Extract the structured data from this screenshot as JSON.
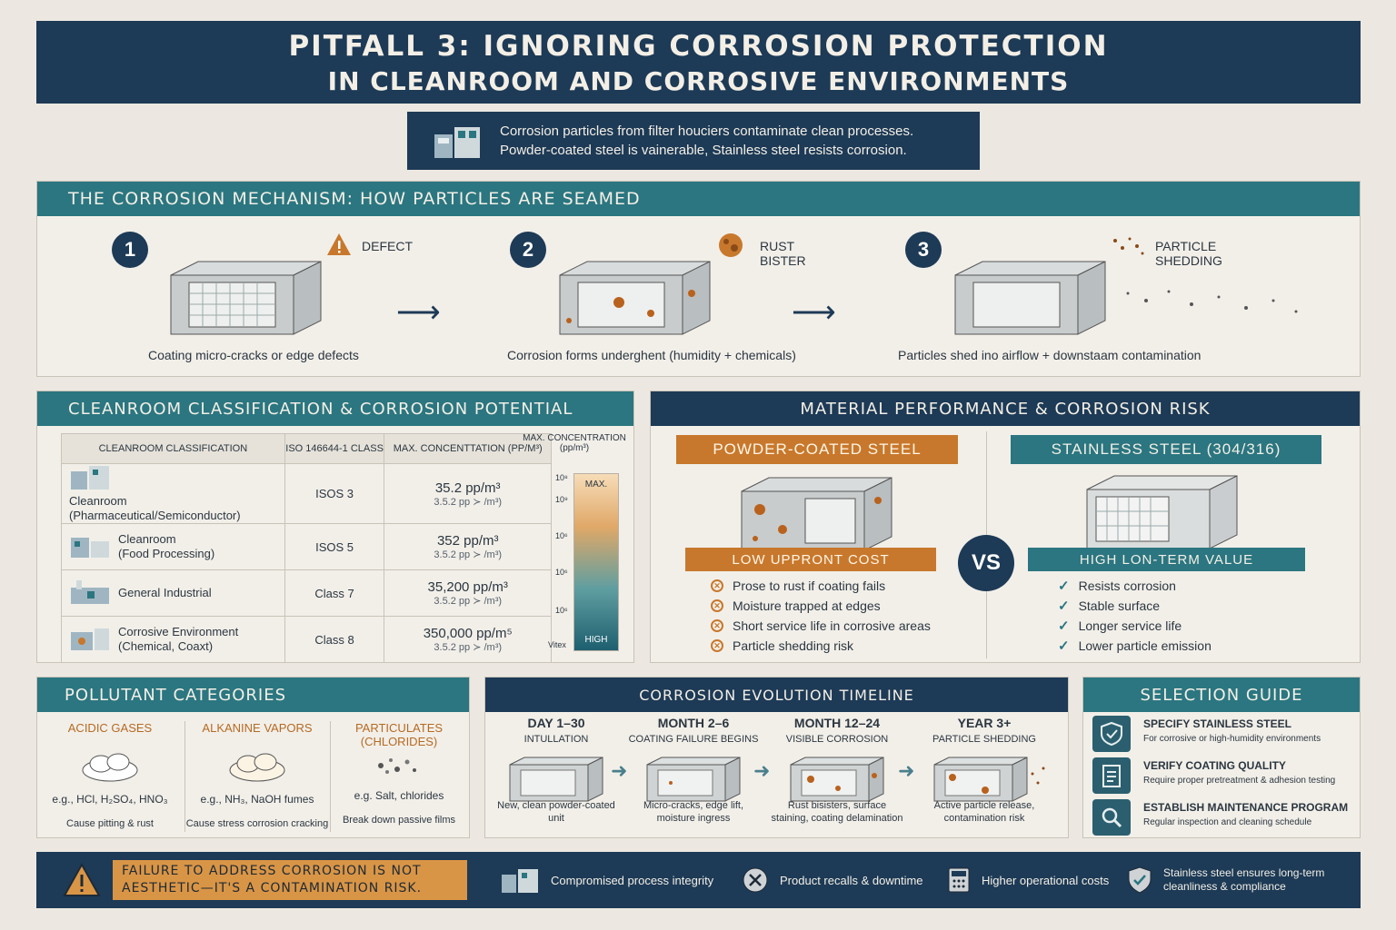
{
  "title": {
    "line1": "PITFALL 3: IGNORING CORROSION PROTECTION",
    "line2": "IN CLEANROOM AND CORROSIVE ENVIRONMENTS"
  },
  "subtitle": {
    "line1": "Corrosion particles from filter houciers contaminate clean processes.",
    "line2": "Powder-coated steel is vainerable, Stainless steel resists corrosion."
  },
  "mechanism": {
    "heading": "THE CORROSION MECHANISM: HOW PARTICLES ARE SEAMED",
    "steps": [
      {
        "num": "1",
        "label": "DEFECT",
        "caption": "Coating micro-cracks or edge defects"
      },
      {
        "num": "2",
        "label": "RUST BISTER",
        "caption": "Corrosion forms underghent (humidity + chemicals)"
      },
      {
        "num": "3",
        "label": "PARTICLE SHEDDING",
        "caption": "Particles shed ino airflow + downstaam contamination"
      }
    ]
  },
  "classification": {
    "heading": "CLEANROOM CLASSIFICATION & CORROSION POTENTIAL",
    "columns": [
      "CLEANROOM CLASSIFICATION",
      "ISO 146644-1 CLASS",
      "MAX. CONCENTTATION (pp/m³)"
    ],
    "rows": [
      {
        "name": "Cleanroom",
        "sub": "(Pharmaceutical/Semiconductor)",
        "cls": "ISOS 3",
        "c1": "35.2 pp/m³",
        "c2": "3.5.2 pp ≻ /m³)"
      },
      {
        "name": "Cleanroom",
        "sub": "(Food Processing)",
        "cls": "ISOS 5",
        "c1": "352 pp/m³",
        "c2": "3.5.2 pp ≻ /m³)"
      },
      {
        "name": "General Industrial",
        "sub": "",
        "cls": "Class 7",
        "c1": "35,200 pp/m³",
        "c2": "3.5.2 pp ≻ /m³)"
      },
      {
        "name": "Corrosive Environment",
        "sub": "(Chemical, Coaxt)",
        "cls": "Class 8",
        "c1": "350,000 pp/m⁵",
        "c2": "3.5.2 pp ≻ /m³)"
      }
    ],
    "scale": {
      "title": "MAX. CONCENTRATION",
      "unit": "(pp/m³)",
      "ticks": [
        "10⁸",
        "10⁹",
        "10⁶",
        "10⁶",
        "10⁶",
        "10⁴"
      ],
      "top_label": "MAX.",
      "bottom_label": "HIGH",
      "bottom_tick": "Vitex"
    }
  },
  "material": {
    "heading": "MATERIAL PERFORMANCE & CORROSION RISK",
    "left": {
      "name": "POWDER-COATED STEEL",
      "tag": "LOW UPPRONT COST",
      "bullets": [
        "Prose to rust if coating fails",
        "Moisture trapped at edges",
        "Short service life in corrosive areas",
        "Particle shedding risk"
      ]
    },
    "vs": "VS",
    "right": {
      "name": "STAINLESS STEEL (304/316)",
      "tag": "HIGH LON-TERM VALUE",
      "bullets": [
        "Resists corrosion",
        "Stable surface",
        "Longer service life",
        "Lower particle emission"
      ]
    }
  },
  "pollutants": {
    "heading": "POLLUTANT CATEGORIES",
    "items": [
      {
        "name": "ACIDIC GASES",
        "example": "e.g., HCl, H₂SO₄, HNO₃",
        "effect": "Cause pitting & rust"
      },
      {
        "name": "ALKANINE VAPORS",
        "example": "e.g., NH₃, NaOH fumes",
        "effect": "Cause stress corrosion cracking"
      },
      {
        "name": "PARTICULATES (CHLORIDES)",
        "example": "e.g. Salt, chlorides",
        "effect": "Break down passive films"
      }
    ]
  },
  "timeline": {
    "heading": "CORROSION EVOLUTION TIMELINE",
    "stages": [
      {
        "time": "DAY 1–30",
        "phase": "INTULLATION",
        "desc": "New, clean powder-coated unit"
      },
      {
        "time": "MONTH 2–6",
        "phase": "COATING FAILURE BEGINS",
        "desc": "Micro-cracks, edge lift, moisture ingress"
      },
      {
        "time": "MONTH 12–24",
        "phase": "VISIBLE CORROSION",
        "desc": "Rust bisisters, surface staining, coating delamination"
      },
      {
        "time": "YEAR 3+",
        "phase": "PARTICLE SHEDDING",
        "desc": "Active particle release, contamination risk"
      }
    ]
  },
  "guide": {
    "heading": "SELECTION GUIDE",
    "items": [
      {
        "title": "SPECIFY STAINLESS STEEL",
        "desc": "For corrosive or high-humidity environments"
      },
      {
        "title": "VERIFY COATING QUALITY",
        "desc": "Require proper pretreatment & adhesion testing"
      },
      {
        "title": "ESTABLISH MAINTENANCE PROGRAM",
        "desc": "Regular inspection and cleaning schedule"
      }
    ]
  },
  "footer": {
    "warning": "FAILURE TO ADDRESS CORROSION IS NOT AESTHETIC—IT'S A CONTAMINATION RISK.",
    "items": [
      "Compromised process integrity",
      "Product recalls & downtime",
      "Higher operational costs",
      "Stainless steel ensures long-term cleanliness & compliance"
    ]
  },
  "colors": {
    "navy": "#1d3a56",
    "teal": "#2b7680",
    "orange": "#c8782c",
    "paper": "#ece8e1"
  }
}
